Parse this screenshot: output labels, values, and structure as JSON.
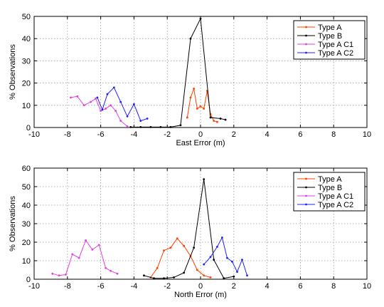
{
  "chart_data": [
    {
      "type": "line",
      "xlabel": "East Error (m)",
      "ylabel": "% Observations",
      "xlim": [
        -10,
        10
      ],
      "ylim": [
        0,
        50
      ],
      "xticks": [
        -10,
        -8,
        -6,
        -4,
        -2,
        0,
        2,
        4,
        6,
        8,
        10
      ],
      "yticks": [
        0,
        10,
        20,
        30,
        40,
        50
      ],
      "grid": true,
      "legend_position": "top-right",
      "series": [
        {
          "name": "Type A",
          "color": "#ff4000",
          "x": [
            -0.8,
            -0.6,
            -0.4,
            -0.2,
            0.0,
            0.2,
            0.4,
            0.6,
            0.8,
            1.0
          ],
          "y": [
            4.5,
            13.5,
            17.5,
            8.5,
            9.5,
            8.5,
            16.5,
            6.0,
            3.0,
            2.5
          ]
        },
        {
          "name": "Type B",
          "color": "#000000",
          "x": [
            -4.2,
            -3.6,
            -3.0,
            -2.4,
            -1.8,
            -1.2,
            -0.6,
            0.0,
            0.6,
            1.2,
            1.5
          ],
          "y": [
            0.2,
            0.2,
            0.2,
            0.2,
            0.2,
            1.0,
            40.0,
            49.0,
            4.5,
            4.0,
            3.5
          ]
        },
        {
          "name": "Type A C1",
          "color": "#e040e0",
          "x": [
            -7.8,
            -7.4,
            -7.0,
            -6.6,
            -6.3,
            -6.0,
            -5.7,
            -5.4,
            -5.1,
            -4.8,
            -4.4
          ],
          "y": [
            13.5,
            14.0,
            10.0,
            11.5,
            13.0,
            7.5,
            8.5,
            10.0,
            7.5,
            3.0,
            0.5
          ]
        },
        {
          "name": "Type A C2",
          "color": "#2020ff",
          "x": [
            -6.2,
            -5.9,
            -5.6,
            -5.2,
            -4.8,
            -4.4,
            -4.0,
            -3.6,
            -3.2
          ],
          "y": [
            13.5,
            8.0,
            15.0,
            18.0,
            11.5,
            5.0,
            10.5,
            3.0,
            4.0
          ]
        }
      ]
    },
    {
      "type": "line",
      "xlabel": "North Error (m)",
      "ylabel": "% Observations",
      "xlim": [
        -10,
        10
      ],
      "ylim": [
        0,
        60
      ],
      "xticks": [
        -10,
        -8,
        -6,
        -4,
        -2,
        0,
        2,
        4,
        6,
        8,
        10
      ],
      "yticks": [
        0,
        10,
        20,
        30,
        40,
        50,
        60
      ],
      "grid": true,
      "legend_position": "top-right",
      "series": [
        {
          "name": "Type A",
          "color": "#ff4000",
          "x": [
            -3.0,
            -2.6,
            -2.2,
            -1.8,
            -1.4,
            -1.0,
            -0.6,
            -0.2,
            0.2,
            0.6
          ],
          "y": [
            1.0,
            6.0,
            15.5,
            17.0,
            22.0,
            18.0,
            12.5,
            5.0,
            2.0,
            1.0
          ]
        },
        {
          "name": "Type B",
          "color": "#000000",
          "x": [
            -3.4,
            -2.8,
            -2.2,
            -1.6,
            -1.0,
            -0.4,
            0.2,
            0.8,
            1.4,
            2.0
          ],
          "y": [
            2.0,
            0.5,
            0.5,
            1.0,
            3.5,
            17.0,
            54.0,
            10.5,
            0.5,
            1.5
          ]
        },
        {
          "name": "Type A C1",
          "color": "#e040e0",
          "x": [
            -8.9,
            -8.5,
            -8.1,
            -7.7,
            -7.3,
            -6.9,
            -6.5,
            -6.1,
            -5.7,
            -5.4,
            -5.0
          ],
          "y": [
            3.0,
            2.0,
            2.5,
            13.5,
            11.5,
            21.0,
            16.0,
            18.5,
            6.0,
            4.5,
            3.0
          ]
        },
        {
          "name": "Type A C2",
          "color": "#2020ff",
          "x": [
            0.2,
            0.6,
            1.0,
            1.3,
            1.6,
            1.9,
            2.2,
            2.5,
            2.8
          ],
          "y": [
            8.0,
            12.0,
            17.5,
            22.5,
            11.5,
            9.5,
            4.0,
            10.5,
            2.0
          ]
        }
      ]
    }
  ]
}
